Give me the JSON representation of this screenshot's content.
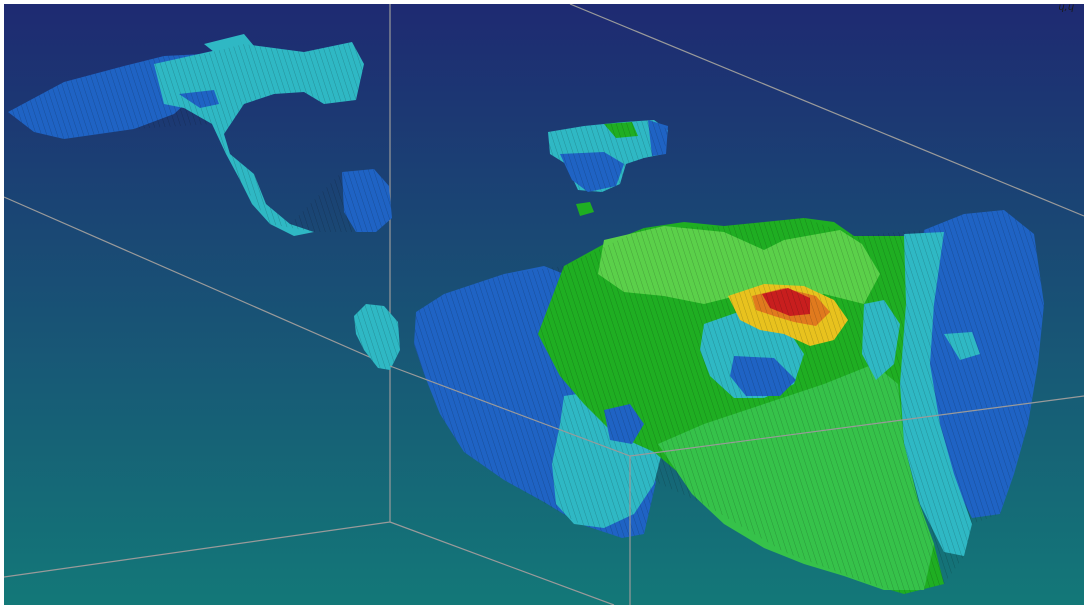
{
  "viewer": {
    "background_top": "#1e2a72",
    "background_bottom": "#137878",
    "bounding_box_color": "#9a9a9a",
    "corner_readout": "ɥ,ɥ"
  },
  "colormap": {
    "low": "#1f63c4",
    "low_mid": "#2fb8c4",
    "mid": "#1fae22",
    "high": "#e8c21e",
    "max": "#c81e1e"
  }
}
